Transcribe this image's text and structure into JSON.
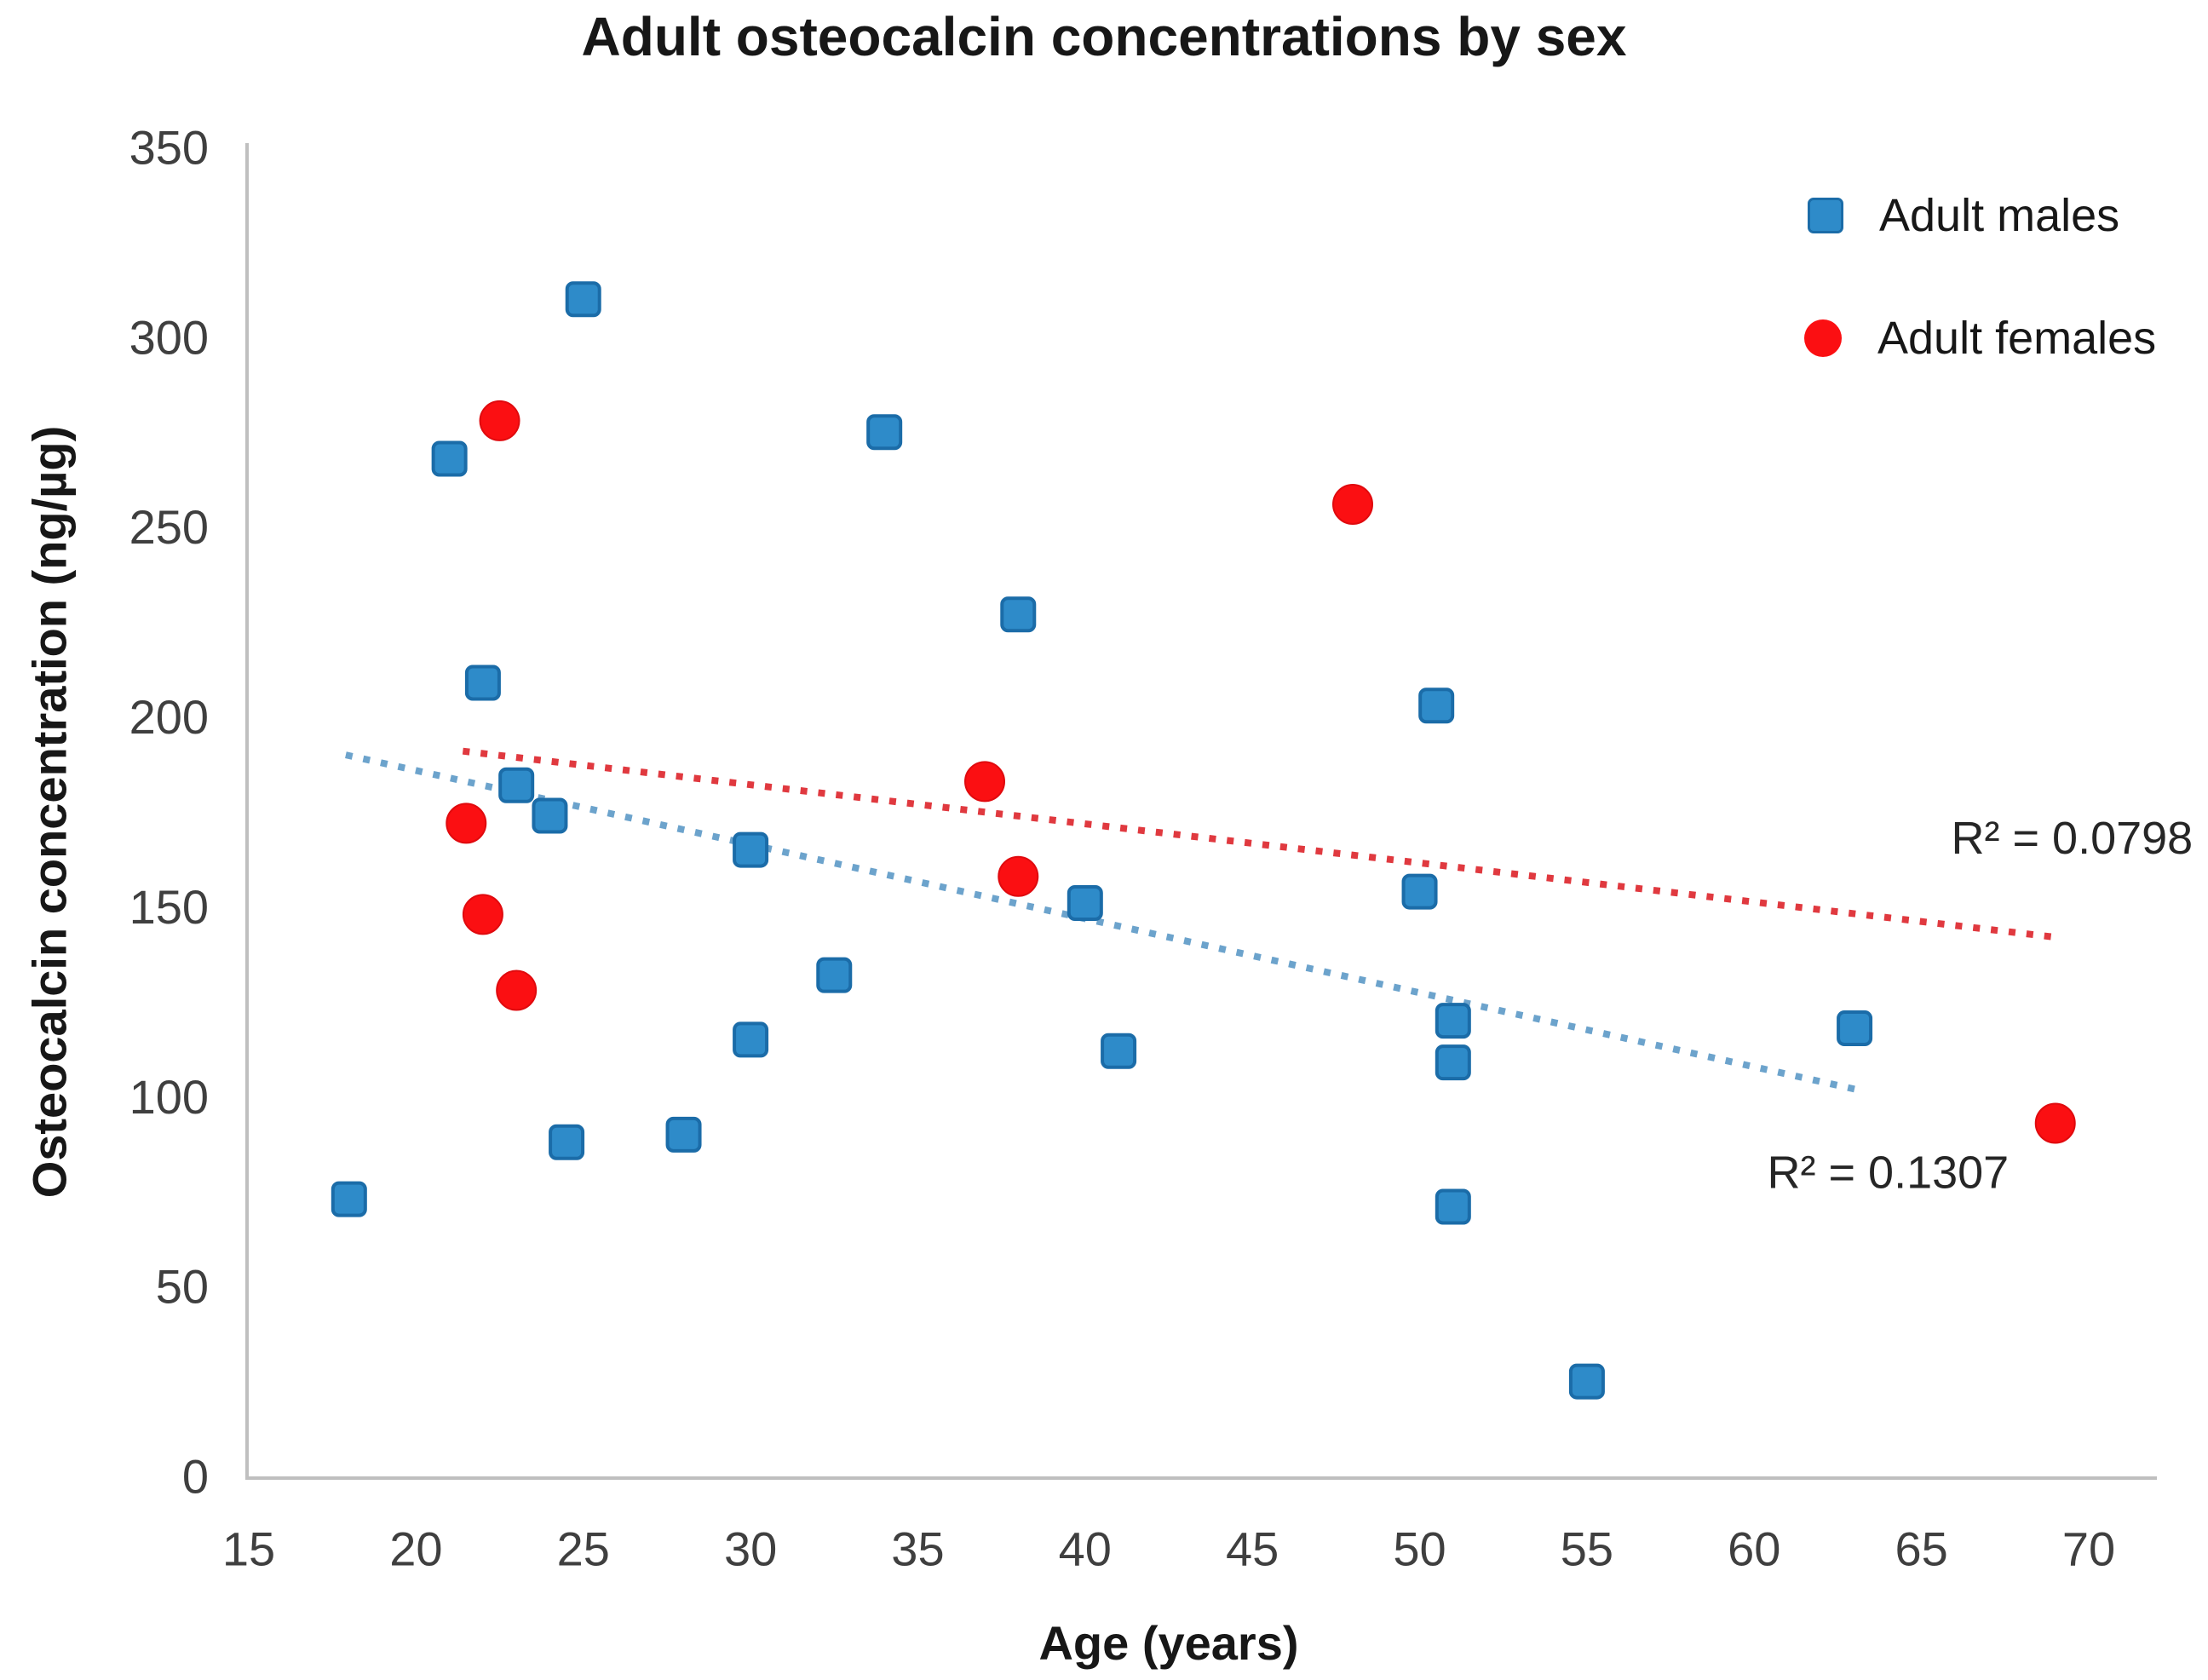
{
  "chart_data": {
    "type": "scatter",
    "title": "Adult osteocalcin concentrations by sex",
    "xlabel": "Age (years)",
    "ylabel": "Osteocalcin concentration (ng/µg)",
    "xlim": [
      15,
      70
    ],
    "ylim": [
      0,
      350
    ],
    "xticks": [
      15,
      20,
      25,
      30,
      35,
      40,
      45,
      50,
      55,
      60,
      65,
      70
    ],
    "yticks": [
      0,
      50,
      100,
      150,
      200,
      250,
      300,
      350
    ],
    "grid": false,
    "legend_position": "top-right",
    "axis_color": "#BFBFBF",
    "series": [
      {
        "name": "Adult males",
        "marker": "square",
        "color": "#2E8BC9",
        "border_color": "#1B6CA8",
        "points": [
          [
            18,
            73
          ],
          [
            21,
            268
          ],
          [
            22,
            209
          ],
          [
            23,
            182
          ],
          [
            24,
            174
          ],
          [
            24.5,
            88
          ],
          [
            25,
            310
          ],
          [
            28,
            90
          ],
          [
            30,
            115
          ],
          [
            30,
            165
          ],
          [
            32.5,
            132
          ],
          [
            34,
            275
          ],
          [
            38,
            227
          ],
          [
            40,
            151
          ],
          [
            41,
            112
          ],
          [
            50,
            154
          ],
          [
            50.5,
            203
          ],
          [
            51,
            71
          ],
          [
            51,
            109
          ],
          [
            51,
            120
          ],
          [
            55,
            25
          ],
          [
            63,
            118
          ]
        ],
        "trendline": {
          "start": [
            17.9,
            190
          ],
          "end": [
            63,
            102
          ],
          "color": "#6CA3CC",
          "r2_label": "R² = 0.1307",
          "label_pos": [
            64,
            80
          ]
        }
      },
      {
        "name": "Adult females",
        "marker": "circle",
        "color": "#FB0F12",
        "border_color": "#E00A0E",
        "points": [
          [
            21.5,
            172
          ],
          [
            22,
            148
          ],
          [
            22.5,
            278
          ],
          [
            23,
            128
          ],
          [
            37,
            183
          ],
          [
            38,
            158
          ],
          [
            48,
            256
          ],
          [
            69,
            93
          ]
        ],
        "trendline": {
          "start": [
            21.4,
            191
          ],
          "end": [
            69,
            142
          ],
          "color": "#E0393F",
          "r2_label": "R² = 0.0798",
          "label_pos": [
            69.5,
            168
          ]
        }
      }
    ]
  }
}
